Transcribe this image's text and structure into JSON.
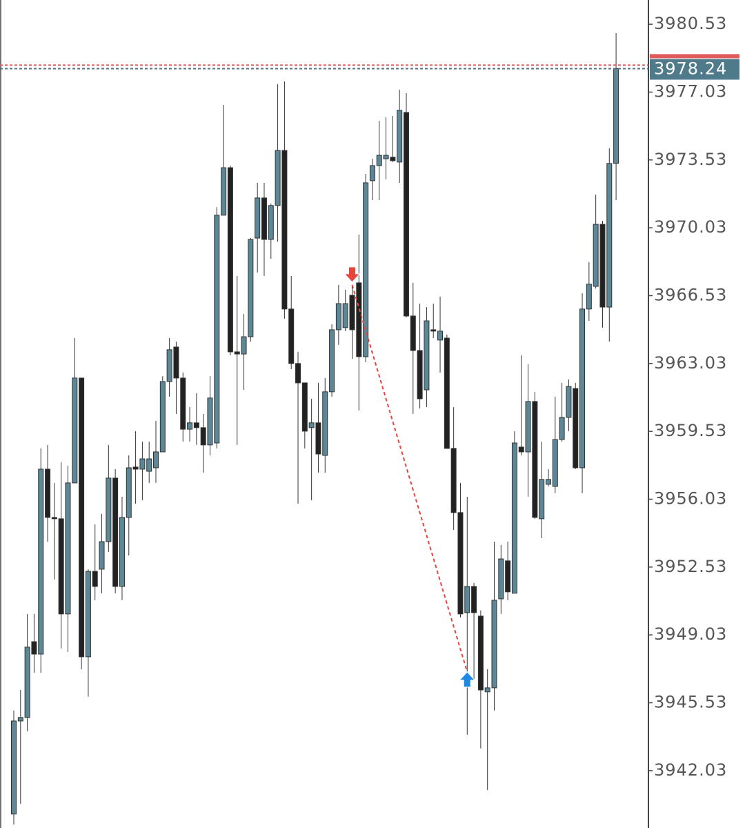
{
  "chart_data": {
    "type": "candlestick",
    "open": [
      3939.79,
      3944.59,
      3944.77,
      3948.68,
      3948.04,
      3957.58,
      3955.09,
      3955.02,
      3950.11,
      3956.87,
      3962.28,
      3947.9,
      3952.31,
      3952.42,
      3953.84,
      3957.12,
      3951.53,
      3955.09,
      3957.69,
      3957.58,
      3957.47,
      3957.65,
      3958.47,
      3962.1,
      3963.88,
      3962.28,
      3959.64,
      3959.97,
      3959.72,
      3958.83,
      3958.93,
      3970.68,
      3973.13,
      3963.63,
      3963.52,
      3964.41,
      3969.5,
      3971.57,
      3969.43,
      3971.18,
      3974.02,
      3965.84,
      3963.03,
      3962.03,
      3959.72,
      3959.97,
      3958.29,
      3961.57,
      3964.77,
      3964.88,
      3966.55,
      3967.19,
      3963.38,
      3972.46,
      3973.24,
      3973.59,
      3973.67,
      3973.42,
      3975.98,
      3965.48,
      3963.7,
      3961.67,
      3964.77,
      3964.24,
      3964.34,
      3958.65,
      3955.34,
      3950.18,
      3951.53,
      3950.0,
      3946.09,
      3946.3,
      3950.89,
      3952.85,
      3951.18,
      3958.72,
      3958.47,
      3961.07,
      3955.02,
      3956.8,
      3956.69,
      3959.11,
      3960.25,
      3961.74,
      3957.65,
      3965.84,
      3967.01,
      3970.21,
      3965.94,
      3973.35
    ],
    "high": [
      3945.13,
      3946.19,
      3950.11,
      3950.11,
      3958.65,
      3958.83,
      3956.87,
      3957.94,
      3957.76,
      3964.34,
      3962.28,
      3952.42,
      3954.73,
      3955.27,
      3958.83,
      3957.58,
      3956.16,
      3958.29,
      3959.54,
      3959.0,
      3959.0,
      3960.07,
      3962.38,
      3964.34,
      3964.16,
      3962.56,
      3960.78,
      3961.5,
      3960.43,
      3962.38,
      3971.1,
      3976.37,
      3973.24,
      3967.55,
      3965.59,
      3969.5,
      3972.35,
      3972.35,
      3971.28,
      3977.44,
      3977.58,
      3967.55,
      3963.63,
      3962.03,
      3961.21,
      3962.03,
      3962.28,
      3965.05,
      3967.08,
      3966.83,
      3967.01,
      3969.68,
      3972.81,
      3973.59,
      3975.55,
      3975.73,
      3975.8,
      3977.15,
      3976.98,
      3967.19,
      3966.12,
      3965.94,
      3966.12,
      3966.48,
      3964.52,
      3960.78,
      3956.87,
      3956.16,
      3951.71,
      3950.29,
      3947.26,
      3953.84,
      3953.67,
      3953.84,
      3959.54,
      3963.45,
      3962.99,
      3961.57,
      3959.0,
      3957.58,
      3961.32,
      3962.03,
      3962.21,
      3962.03,
      3966.66,
      3968.26,
      3971.74,
      3970.39,
      3974.13,
      3980.07
    ],
    "low": [
      3939.25,
      3940.32,
      3944.06,
      3947.08,
      3947.08,
      3953.84,
      3951.89,
      3948.33,
      3948.15,
      3956.87,
      3947.26,
      3945.84,
      3950.82,
      3951.18,
      3953.31,
      3951.18,
      3950.82,
      3953.13,
      3955.8,
      3955.98,
      3956.87,
      3956.87,
      3958.47,
      3961.32,
      3960.43,
      3959.0,
      3959.0,
      3958.83,
      3957.4,
      3958.29,
      3958.65,
      3970.68,
      3963.45,
      3958.83,
      3961.67,
      3964.16,
      3967.72,
      3967.55,
      3968.43,
      3969.32,
      3965.34,
      3962.74,
      3955.8,
      3958.65,
      3955.98,
      3957.4,
      3957.4,
      3961.32,
      3963.99,
      3964.7,
      3963.27,
      3960.61,
      3963.1,
      3971.46,
      3971.46,
      3972.53,
      3973.42,
      3972.35,
      3965.41,
      3960.43,
      3960.71,
      3960.78,
      3964.34,
      3962.56,
      3958.65,
      3954.45,
      3949.93,
      3943.88,
      3946.73,
      3943.17,
      3941.03,
      3945.13,
      3950.11,
      3950.82,
      3951.18,
      3958.29,
      3956.16,
      3955.02,
      3954.02,
      3956.69,
      3956.34,
      3959.0,
      3959.54,
      3957.58,
      3956.34,
      3965.23,
      3966.9,
      3964.88,
      3964.16,
      3971.46
    ],
    "close": [
      3944.59,
      3944.77,
      3948.4,
      3948.04,
      3957.58,
      3955.09,
      3955.02,
      3950.11,
      3956.87,
      3962.28,
      3947.9,
      3952.31,
      3951.53,
      3953.84,
      3957.12,
      3951.53,
      3955.09,
      3957.65,
      3957.58,
      3958.11,
      3958.11,
      3958.47,
      3962.1,
      3963.74,
      3962.28,
      3959.64,
      3959.97,
      3959.72,
      3958.83,
      3961.25,
      3970.68,
      3973.13,
      3963.63,
      3963.52,
      3964.41,
      3969.43,
      3971.57,
      3969.43,
      3971.18,
      3974.02,
      3965.84,
      3963.03,
      3962.03,
      3959.54,
      3959.97,
      3958.36,
      3961.57,
      3964.77,
      3966.12,
      3966.12,
      3964.77,
      3963.38,
      3972.35,
      3973.24,
      3973.77,
      3973.77,
      3973.49,
      3976.09,
      3965.48,
      3963.7,
      3961.21,
      3965.23,
      3964.7,
      3964.7,
      3958.65,
      3955.34,
      3950.11,
      3951.53,
      3950.18,
      3946.19,
      3946.3,
      3950.82,
      3952.95,
      3951.25,
      3958.93,
      3958.47,
      3961.07,
      3955.09,
      3957.05,
      3957.05,
      3959.11,
      3960.25,
      3961.85,
      3957.65,
      3965.84,
      3967.12,
      3970.21,
      3965.94,
      3973.35,
      3978.24
    ],
    "up_color": "#5b8797",
    "down_color": "#222222",
    "ylim": [
      3939.07,
      3981.78
    ],
    "yticks": [
      3980.53,
      3977.03,
      3973.53,
      3970.03,
      3966.53,
      3963.03,
      3959.53,
      3956.03,
      3952.53,
      3949.03,
      3945.53,
      3942.03
    ],
    "last_price": "3978.24",
    "last_value": 3978.24,
    "ask_value": 3978.42,
    "markers": [
      {
        "kind": "sell",
        "candle": 50,
        "price": 3967.37,
        "color": "#e8453c"
      },
      {
        "kind": "buy",
        "candle": 67,
        "price": 3946.98,
        "color": "#1e88e5"
      }
    ]
  }
}
